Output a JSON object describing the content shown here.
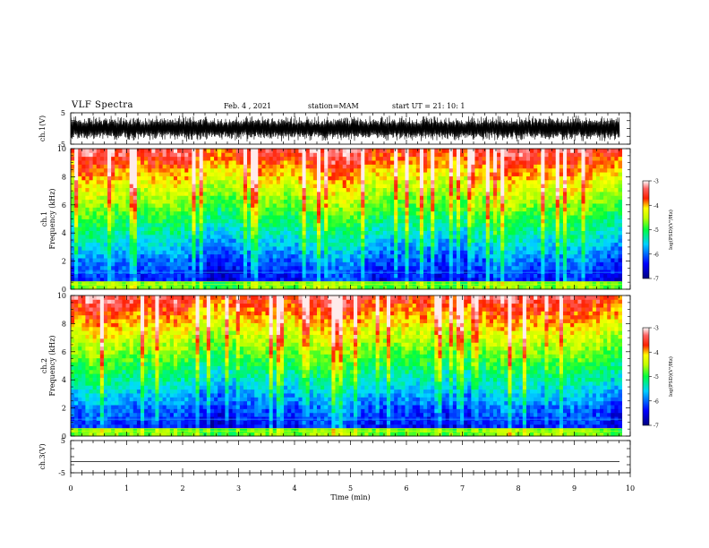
{
  "header": {
    "title": "VLF Spectra",
    "date": "Feb. 4 , 2021",
    "station": "station=MAM",
    "start": "start  UT  =   21: 10: 1"
  },
  "chart_data": [
    {
      "type": "line",
      "panel": "ch1-waveform",
      "ylabel": "ch.1(V)",
      "ylim": [
        -5,
        5
      ],
      "yticks": [
        "5",
        "-5"
      ],
      "xlim": [
        0,
        10
      ],
      "description_series": "dense oscillating waveform over the full time span"
    },
    {
      "type": "heatmap",
      "panel": "ch1-spectrogram",
      "ylabel_top": "ch.1",
      "ylabel": "Frequency  (kHz)",
      "xlim": [
        0,
        10
      ],
      "ylim": [
        0,
        10
      ],
      "yticks": [
        "0",
        "2",
        "4",
        "6",
        "8",
        "10"
      ],
      "data_end_min": 9.85,
      "colorbar": {
        "label": "log(PSD)(V²/Hz)",
        "range": [
          -7,
          -3
        ],
        "ticks": [
          "-3",
          "-4",
          "-5",
          "-6",
          "-7"
        ]
      }
    },
    {
      "type": "heatmap",
      "panel": "ch2-spectrogram",
      "ylabel_top": "ch.2",
      "ylabel": "Frequency  (kHz)",
      "xlim": [
        0,
        10
      ],
      "ylim": [
        0,
        10
      ],
      "yticks": [
        "0",
        "2",
        "4",
        "6",
        "8",
        "10"
      ],
      "data_end_min": 9.85,
      "colorbar": {
        "label": "log(PSD)(V²/Hz)",
        "range": [
          -7,
          -3
        ],
        "ticks": [
          "-3",
          "-4",
          "-5",
          "-6",
          "-7"
        ]
      }
    },
    {
      "type": "line",
      "panel": "ch3-waveform",
      "ylabel": "ch.3(V)",
      "ylim": [
        -5,
        5
      ],
      "yticks": [
        "5",
        "-5"
      ],
      "xlim": [
        0,
        10
      ],
      "xticks": [
        "0",
        "1",
        "2",
        "3",
        "4",
        "5",
        "6",
        "7",
        "8",
        "9",
        "10"
      ],
      "xlabel": "Time  (min)",
      "line_value": -1.5
    }
  ],
  "colors": {
    "colormap": [
      "#00008c",
      "#0000ff",
      "#00ffff",
      "#00ff00",
      "#ffff00",
      "#ff0000",
      "#ffb0b0"
    ]
  }
}
